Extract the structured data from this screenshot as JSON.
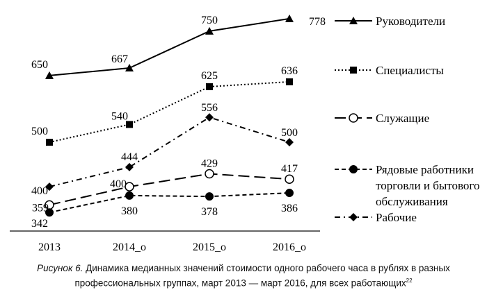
{
  "chart_data": {
    "type": "line",
    "categories": [
      "2013",
      "2014_o",
      "2015_o",
      "2016_o"
    ],
    "ylim": [
      294,
      820
    ],
    "grid": false,
    "legend_position": "right",
    "series": [
      {
        "name": "Руководители",
        "values": [
          650,
          667,
          750,
          778
        ],
        "marker": "triangle",
        "dash": "solid"
      },
      {
        "name": "Специалисты",
        "values": [
          500,
          540,
          625,
          636
        ],
        "marker": "square",
        "dash": "dotted"
      },
      {
        "name": "Служащие",
        "values": [
          359,
          400,
          429,
          417
        ],
        "marker": "circle-open",
        "dash": "long-dash"
      },
      {
        "name": "Рядовые работники торговли и бытового обслуживания",
        "legend_lines": [
          "Рядовые работники",
          "торговли и бытового",
          "обслуживания"
        ],
        "values": [
          342,
          380,
          378,
          386
        ],
        "marker": "circle-filled",
        "dash": "short-dash"
      },
      {
        "name": "Рабочие",
        "values": [
          400,
          444,
          556,
          500
        ],
        "marker": "diamond",
        "dash": "dash-dot"
      }
    ]
  },
  "caption": {
    "label": "Рисунок 6.",
    "text": " Динамика медианных значений стоимости одного рабочего часа в рублях в разных профессиональных группах, март 2013 — март 2016, для всех работающих",
    "footnote": "22"
  }
}
